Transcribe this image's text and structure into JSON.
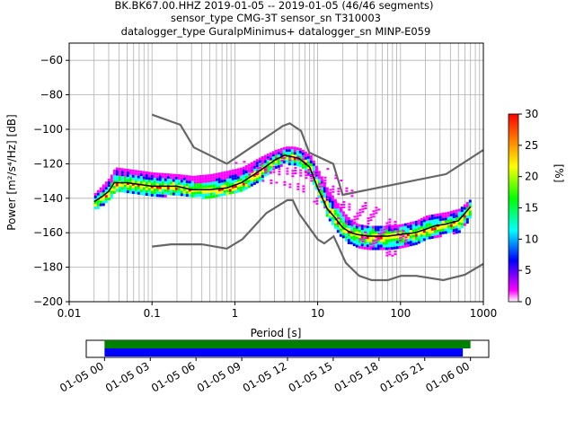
{
  "title": {
    "line1": "BK.BK67.00.HHZ   2019-01-05 -- 2019-01-05  (46/46 segments)",
    "line2": "sensor_type CMG-3T sensor_sn T310003",
    "line3": "datalogger_type GuralpMinimus+ datalogger_sn MINP-E059"
  },
  "chart_data": [
    {
      "type": "heatmap",
      "title": "BK.BK67.00.HHZ   2019-01-05 -- 2019-01-05  (46/46 segments)",
      "xlabel": "Period [s]",
      "ylabel": "Power [m²/s⁴/Hz] [dB]",
      "xscale": "log",
      "xlim": [
        0.01,
        1000
      ],
      "ylim": [
        -200,
        -50
      ],
      "x_ticks": [
        "0.01",
        "0.1",
        "1",
        "10",
        "100",
        "1000"
      ],
      "y_ticks": [
        -60,
        -80,
        -100,
        -120,
        -140,
        -160,
        -180,
        -200
      ],
      "grid": true,
      "colorbar": {
        "label": "[%]",
        "range": [
          0,
          30
        ],
        "ticks": [
          0,
          5,
          10,
          15,
          20,
          25,
          30
        ],
        "colormap": [
          "#ffffff",
          "#ff00ff",
          "#0000ff",
          "#00ffff",
          "#00ff00",
          "#ffff00",
          "#ff0000"
        ]
      },
      "noise_model_high": {
        "color": "#666666",
        "periods": [
          0.1,
          0.22,
          0.32,
          0.8,
          3.8,
          4.6,
          6.3,
          7.9,
          15.4,
          20,
          354.8,
          1000
        ],
        "db": [
          -91.5,
          -97.4,
          -110.5,
          -120,
          -98,
          -96.5,
          -101,
          -113.5,
          -120,
          -138,
          -126,
          -112
        ]
      },
      "noise_model_low": {
        "color": "#666666",
        "periods": [
          0.1,
          0.17,
          0.4,
          0.8,
          1.24,
          2.4,
          4.3,
          5,
          6,
          10,
          12,
          15.6,
          21.9,
          31.6,
          45,
          70,
          101,
          154,
          328,
          600,
          1000
        ],
        "db": [
          -168,
          -166.7,
          -166.7,
          -169.2,
          -163.7,
          -148.6,
          -141.1,
          -141.1,
          -149,
          -163.8,
          -166.2,
          -162.1,
          -177.5,
          -185,
          -187.5,
          -187.5,
          -185,
          -185,
          -187.5,
          -184.4,
          -178
        ]
      },
      "mean_psd": {
        "color": "#000000",
        "periods": [
          0.02,
          0.025,
          0.03,
          0.035,
          0.05,
          0.1,
          0.2,
          0.3,
          0.5,
          0.8,
          1.2,
          2,
          3,
          4,
          5,
          6,
          8,
          10,
          13,
          16,
          20,
          25,
          30,
          40,
          50,
          70,
          100,
          150,
          200,
          260,
          350,
          500,
          700
        ],
        "db": [
          -142,
          -139,
          -136,
          -131,
          -131,
          -133,
          -133,
          -135,
          -135,
          -134,
          -131,
          -124,
          -118,
          -115,
          -116,
          -117,
          -122,
          -134,
          -146,
          -151,
          -157,
          -160,
          -161,
          -162,
          -162,
          -162,
          -161,
          -160,
          -158,
          -156,
          -155,
          -153,
          -145
        ]
      },
      "psd_band": {
        "periods": [
          0.02,
          0.025,
          0.03,
          0.035,
          0.05,
          0.1,
          0.2,
          0.3,
          0.5,
          0.8,
          1.2,
          2,
          3,
          4,
          5,
          6,
          8,
          10,
          13,
          16,
          20,
          25,
          30,
          40,
          50,
          70,
          100,
          150,
          200,
          260,
          350,
          500,
          700
        ],
        "upper_db": [
          -137,
          -132,
          -128,
          -122,
          -123,
          -125,
          -126,
          -127,
          -126,
          -124,
          -122,
          -116,
          -112,
          -110,
          -110,
          -111,
          -115,
          -124,
          -135,
          -141,
          -148,
          -153,
          -155,
          -156,
          -156,
          -156,
          -155,
          -153,
          -150,
          -149,
          -148,
          -146,
          -140
        ],
        "lower_db": [
          -146,
          -143,
          -140,
          -136,
          -136,
          -138,
          -138,
          -139,
          -139,
          -138,
          -136,
          -129,
          -122,
          -119,
          -120,
          -121,
          -127,
          -139,
          -151,
          -158,
          -163,
          -167,
          -168,
          -170,
          -170,
          -170,
          -168,
          -166,
          -164,
          -162,
          -160,
          -159,
          -150
        ]
      },
      "scatter_band": {
        "periods": [
          1,
          2,
          4,
          8,
          15,
          25,
          40,
          70,
          120
        ],
        "upper_db": [
          -119,
          -117,
          -116,
          -115,
          -125,
          -135,
          -142,
          -150,
          -155
        ],
        "lower_db": [
          -125,
          -130,
          -132,
          -140,
          -150,
          -160,
          -168,
          -174,
          -172
        ]
      }
    },
    {
      "type": "bar",
      "title": "",
      "x_ticks": [
        "01-05 00",
        "01-05 03",
        "01-05 06",
        "01-05 09",
        "01-05 12",
        "01-05 15",
        "01-05 18",
        "01-05 21",
        "01-06 00"
      ],
      "series": [
        {
          "color": "#008000",
          "start_hour": 0,
          "end_hour": 24.0
        },
        {
          "color": "#0000ff",
          "start_hour": 0,
          "end_hour": 23.5
        }
      ],
      "xlim_hours": [
        -1.2,
        25.2
      ]
    }
  ]
}
